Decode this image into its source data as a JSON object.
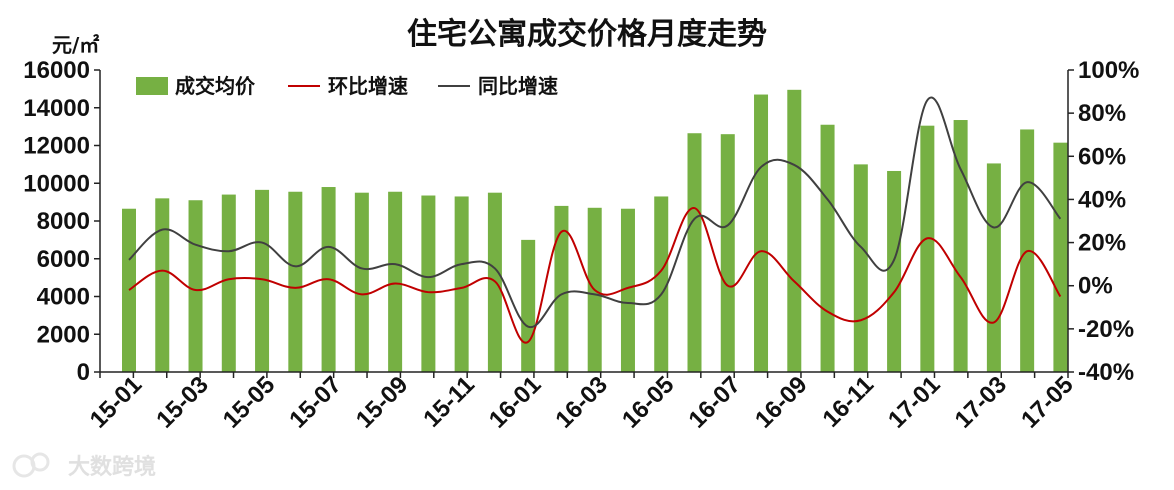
{
  "chart_data": {
    "type": "bar",
    "title": "住宅公寓成交价格月度走势",
    "ylabel": "元/㎡",
    "ylim": [
      0,
      16000
    ],
    "y2lim": [
      -40,
      100
    ],
    "yticks": [
      "16000",
      "14000",
      "12000",
      "10000",
      "8000",
      "6000",
      "4000",
      "2000",
      "0"
    ],
    "y2ticks": [
      "100%",
      "80%",
      "60%",
      "40%",
      "20%",
      "0%",
      "-20%",
      "-40%"
    ],
    "xtick_labels": [
      "15-01",
      "15-03",
      "15-05",
      "15-07",
      "15-09",
      "15-11",
      "16-01",
      "16-03",
      "16-05",
      "16-07",
      "16-09",
      "16-11",
      "17-01",
      "17-03",
      "17-05"
    ],
    "categories": [
      "15-01",
      "15-02",
      "15-03",
      "15-04",
      "15-05",
      "15-06",
      "15-07",
      "15-08",
      "15-09",
      "15-10",
      "15-11",
      "15-12",
      "16-01",
      "16-02",
      "16-03",
      "16-04",
      "16-05",
      "16-06",
      "16-07",
      "16-08",
      "16-09",
      "16-10",
      "16-11",
      "16-12",
      "17-01",
      "17-02",
      "17-03",
      "17-04",
      "17-05"
    ],
    "legend_position": "top-left",
    "grid": false,
    "series": [
      {
        "name": "成交均价",
        "type": "bar",
        "axis": "left",
        "color": "#76b043",
        "values": [
          8650,
          9200,
          9100,
          9400,
          9650,
          9550,
          9800,
          9500,
          9550,
          9350,
          9300,
          9500,
          7000,
          8800,
          8700,
          8650,
          9300,
          12650,
          12600,
          14700,
          14950,
          13100,
          11000,
          10650,
          13050,
          13350,
          11050,
          12850,
          12150
        ]
      },
      {
        "name": "环比增速",
        "type": "line",
        "axis": "right",
        "color": "#c00000",
        "values": [
          -2,
          7,
          -2,
          3,
          3,
          -1,
          3,
          -4,
          1,
          -3,
          -1,
          2,
          -26,
          25,
          -2,
          -1,
          7,
          36,
          0,
          16,
          2,
          -12,
          -16,
          -3,
          22,
          4,
          -17,
          16,
          -5
        ]
      },
      {
        "name": "同比增速",
        "type": "line",
        "axis": "right",
        "color": "#404040",
        "values": [
          12,
          26,
          19,
          16,
          20,
          9,
          18,
          8,
          10,
          4,
          10,
          8,
          -19,
          -4,
          -4,
          -8,
          -4,
          31,
          28,
          55,
          56,
          40,
          18,
          12,
          86,
          54,
          27,
          48,
          31
        ]
      }
    ]
  },
  "watermark": "大数跨境"
}
